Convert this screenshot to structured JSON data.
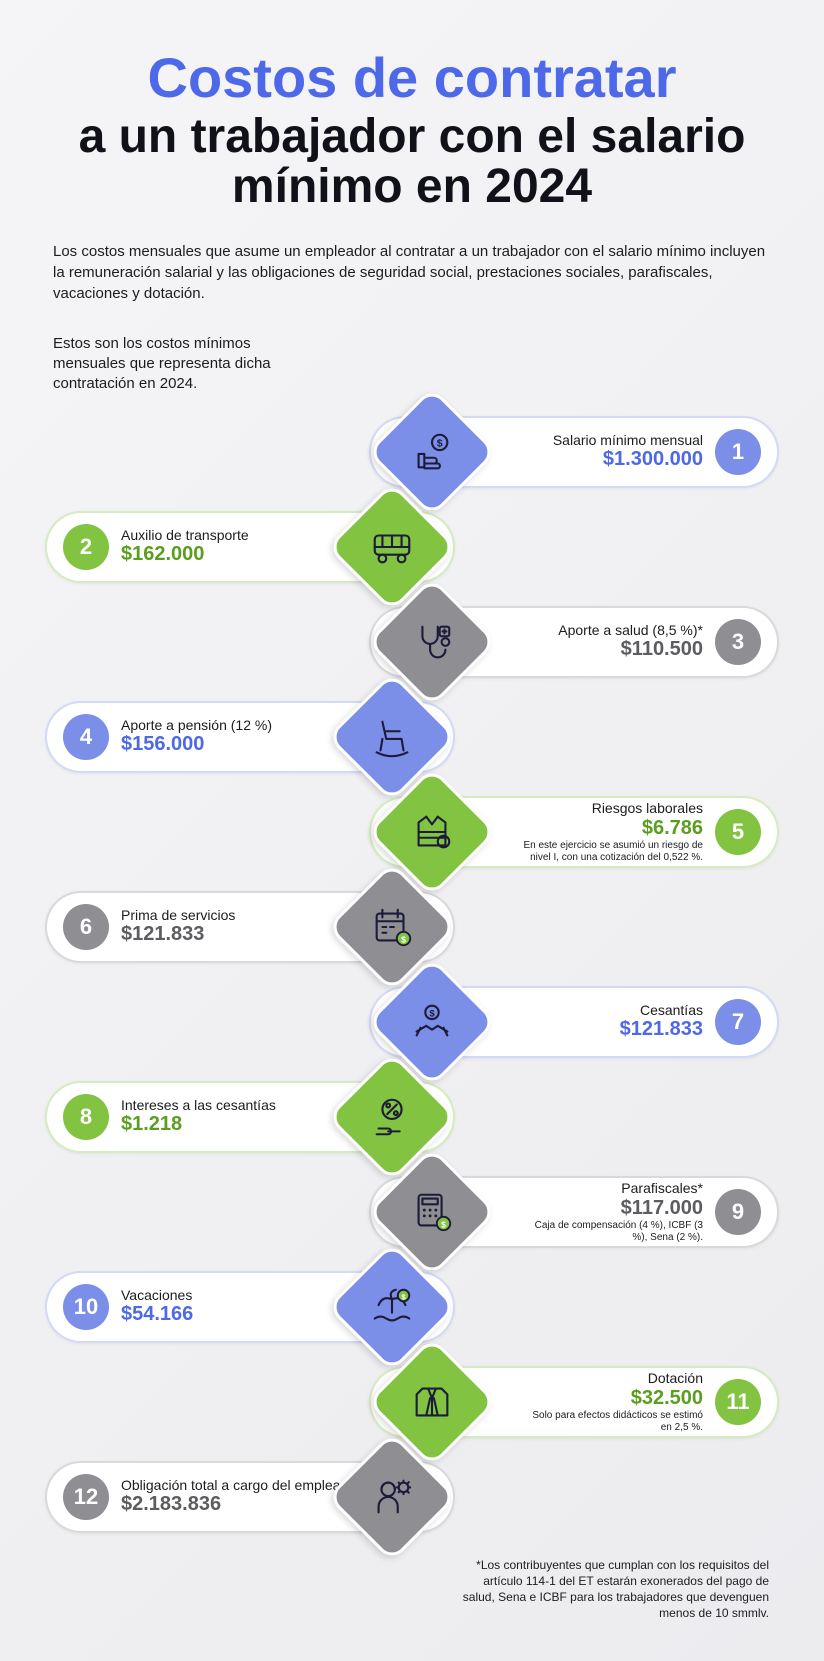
{
  "colors": {
    "blue": "#7b8ee8",
    "green": "#82c341",
    "gray": "#8e8e93",
    "blue_text": "#4d68e8",
    "green_text": "#5a9e1f",
    "gray_text": "#5c5c61"
  },
  "title_line1": "Costos de contratar",
  "title_line2": "a un trabajador con el salario mínimo en 2024",
  "intro": "Los costos mensuales que asume un empleador al contratar a un trabajador con el salario mínimo incluyen la remuneración salarial y las obligaciones de seguridad social, prestaciones sociales, parafiscales, vacaciones y dotación.",
  "subtitle": "Estos son los costos mínimos mensuales que representa dicha contratación en 2024.",
  "footnote": "*Los contribuyentes que cumplan con los requisitos del artículo 114-1 del ET estarán exonerados del pago de salud, Sena e ICBF para los trabajadores que devenguen menos de 10 smmlv.",
  "items": [
    {
      "n": "1",
      "side": "right",
      "color": "blue",
      "icon": "money-thumb",
      "label": "Salario mínimo mensual",
      "value": "$1.300.000",
      "note": ""
    },
    {
      "n": "2",
      "side": "left",
      "color": "green",
      "icon": "bus",
      "label": "Auxilio de transporte",
      "value": "$162.000",
      "note": ""
    },
    {
      "n": "3",
      "side": "right",
      "color": "gray",
      "icon": "stethoscope",
      "label": "Aporte a salud (8,5 %)*",
      "value": "$110.500",
      "note": ""
    },
    {
      "n": "4",
      "side": "left",
      "color": "blue",
      "icon": "rocking-chair",
      "label": "Aporte a pensión (12 %)",
      "value": "$156.000",
      "note": ""
    },
    {
      "n": "5",
      "side": "right",
      "color": "green",
      "icon": "safety-vest",
      "label": "Riesgos laborales",
      "value": "$6.786",
      "note": "En este ejercicio se asumió un riesgo de nivel I, con una cotización del 0,522 %."
    },
    {
      "n": "6",
      "side": "left",
      "color": "gray",
      "icon": "calendar-money",
      "label": "Prima de servicios",
      "value": "$121.833",
      "note": ""
    },
    {
      "n": "7",
      "side": "right",
      "color": "blue",
      "icon": "cash-hands",
      "label": "Cesantías",
      "value": "$121.833",
      "note": ""
    },
    {
      "n": "8",
      "side": "left",
      "color": "green",
      "icon": "percent-hand",
      "label": "Intereses a las cesantías",
      "value": "$1.218",
      "note": ""
    },
    {
      "n": "9",
      "side": "right",
      "color": "gray",
      "icon": "calculator",
      "label": "Parafiscales*",
      "value": "$117.000",
      "note": "Caja de compensación (4 %), ICBF (3 %), Sena (2 %)."
    },
    {
      "n": "10",
      "side": "left",
      "color": "blue",
      "icon": "vacation",
      "label": "Vacaciones",
      "value": "$54.166",
      "note": ""
    },
    {
      "n": "11",
      "side": "right",
      "color": "green",
      "icon": "uniform",
      "label": "Dotación",
      "value": "$32.500",
      "note": "Solo para efectos didácticos se estimó en 2,5 %."
    },
    {
      "n": "12",
      "side": "left",
      "color": "gray",
      "icon": "worker-gear",
      "label": "Obligación total a cargo del empleador",
      "value": "$2.183.836",
      "note": ""
    }
  ]
}
